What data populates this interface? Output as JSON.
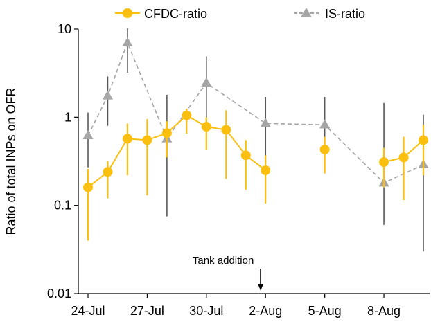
{
  "chart_data": {
    "type": "scatter",
    "title": "",
    "xlabel": "",
    "ylabel": "Ratio of total INPs on OFR",
    "y_scale": "log",
    "ylim": [
      0.01,
      10
    ],
    "yticks": [
      0.01,
      0.1,
      1,
      10
    ],
    "ytick_labels": [
      "0.01",
      "0.1",
      "1",
      "10"
    ],
    "xlim": [
      "2021-07-24",
      "2021-08-10"
    ],
    "xticks": [
      "2021-07-24",
      "2021-07-27",
      "2021-07-30",
      "2021-08-02",
      "2021-08-05",
      "2021-08-08"
    ],
    "xtick_labels": [
      "24-Jul",
      "27-Jul",
      "30-Jul",
      "2-Aug",
      "5-Aug",
      "8-Aug"
    ],
    "grid": false,
    "legend_position": "top",
    "annotations": [
      {
        "text": "Tank addition",
        "x": "2021-08-01T18:00",
        "arrow": "down"
      }
    ],
    "series": [
      {
        "name": "CFDC-ratio",
        "color": "#FBBF0F",
        "marker": "circle",
        "line": "solid",
        "points": [
          {
            "x": "2021-07-24",
            "y": 0.16,
            "err_low": 0.04,
            "err_high": 0.26
          },
          {
            "x": "2021-07-25",
            "y": 0.24,
            "err_low": 0.12,
            "err_high": 0.32
          },
          {
            "x": "2021-07-26",
            "y": 0.57,
            "err_low": 0.22,
            "err_high": 0.85
          },
          {
            "x": "2021-07-27",
            "y": 0.55,
            "err_low": 0.13,
            "err_high": 0.95
          },
          {
            "x": "2021-07-28",
            "y": 0.66,
            "err_low": 0.35,
            "err_high": 0.9
          },
          {
            "x": "2021-07-29",
            "y": 1.05,
            "err_low": 0.65,
            "err_high": 1.25
          },
          {
            "x": "2021-07-30",
            "y": 0.78,
            "err_low": 0.43,
            "err_high": 1.0
          },
          {
            "x": "2021-07-31",
            "y": 0.72,
            "err_low": 0.2,
            "err_high": 1.2
          },
          {
            "x": "2021-08-01",
            "y": 0.37,
            "err_low": 0.15,
            "err_high": 0.55
          },
          {
            "x": "2021-08-02",
            "y": 0.25,
            "err_low": 0.105,
            "err_high": 0.37
          },
          {
            "x": "2021-08-05",
            "y": 0.43,
            "err_low": 0.23,
            "err_high": 0.6
          },
          {
            "x": "2021-08-08",
            "y": 0.31,
            "err_low": 0.16,
            "err_high": 0.45
          },
          {
            "x": "2021-08-09",
            "y": 0.35,
            "err_low": 0.115,
            "err_high": 0.6
          },
          {
            "x": "2021-08-10",
            "y": 0.55,
            "err_low": 0.22,
            "err_high": 0.82
          }
        ]
      },
      {
        "name": "IS-ratio",
        "color": "#A6A6A6",
        "marker": "triangle",
        "line": "dashed",
        "points": [
          {
            "x": "2021-07-24",
            "y": 0.62,
            "err_low": 0.27,
            "err_high": 1.13
          },
          {
            "x": "2021-07-25",
            "y": 1.75,
            "err_low": 0.8,
            "err_high": 2.9
          },
          {
            "x": "2021-07-26",
            "y": 7.0,
            "err_low": 3.2,
            "err_high": 10.2
          },
          {
            "x": "2021-07-28",
            "y": 0.57,
            "err_low": 0.075,
            "err_high": 1.8
          },
          {
            "x": "2021-07-30",
            "y": 2.45,
            "err_low": 0.62,
            "err_high": 4.9
          },
          {
            "x": "2021-08-02",
            "y": 0.85,
            "err_low": 0.32,
            "err_high": 1.7
          },
          {
            "x": "2021-08-05",
            "y": 0.82,
            "err_low": 0.39,
            "err_high": 1.7
          },
          {
            "x": "2021-08-08",
            "y": 0.18,
            "err_low": 0.06,
            "err_high": 1.45
          },
          {
            "x": "2021-08-10",
            "y": 0.29,
            "err_low": 0.03,
            "err_high": 1.07
          }
        ]
      }
    ]
  }
}
